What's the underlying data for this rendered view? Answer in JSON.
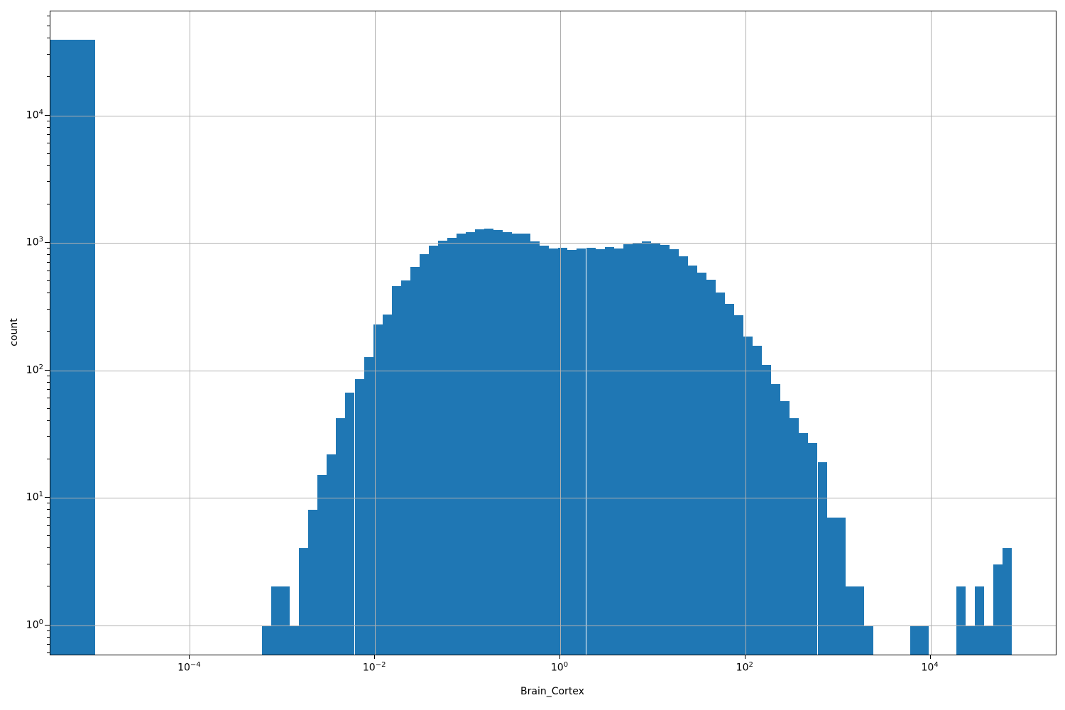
{
  "figure": {
    "xlabel": "Brain_Cortex",
    "ylabel": "count",
    "background": "#ffffff",
    "spine_color": "#000000"
  },
  "chart_data": {
    "type": "bar",
    "subtype": "histogram",
    "title": "",
    "xlabel": "Brain_Cortex",
    "ylabel": "count",
    "x_scale": "log",
    "y_scale": "log",
    "bar_color": "#1f77b4",
    "grid_color": "#b0b0b0",
    "grid": "major-both-axes-drawn-above-bars",
    "legend": "none",
    "axes": {
      "x_log10_min": -5.5061,
      "x_log10_max": 5.3528,
      "y_log10_min": -0.2312,
      "y_log10_max": 4.8162
    },
    "x_tick_exponents": [
      -4,
      -2,
      0,
      2,
      4
    ],
    "y_tick_exponents": [
      0,
      1,
      2,
      3,
      4
    ],
    "y_minor_ticks": true,
    "x_minor_ticks": false,
    "bars_format": [
      "log10_left_edge",
      "log10_right_edge",
      "count"
    ],
    "bars": [
      [
        -5.52,
        -5.02,
        39000
      ],
      [
        -3.22,
        -3.12,
        1
      ],
      [
        -3.12,
        -3.02,
        2
      ],
      [
        -3.02,
        -2.92,
        2
      ],
      [
        -2.92,
        -2.82,
        1
      ],
      [
        -2.82,
        -2.72,
        4
      ],
      [
        -2.72,
        -2.62,
        8
      ],
      [
        -2.62,
        -2.52,
        15
      ],
      [
        -2.52,
        -2.42,
        22
      ],
      [
        -2.42,
        -2.32,
        42
      ],
      [
        -2.32,
        -2.22,
        67
      ],
      [
        -2.22,
        -2.12,
        85
      ],
      [
        -2.12,
        -2.02,
        127
      ],
      [
        -2.02,
        -1.92,
        230
      ],
      [
        -1.92,
        -1.82,
        275
      ],
      [
        -1.82,
        -1.72,
        460
      ],
      [
        -1.72,
        -1.62,
        505
      ],
      [
        -1.62,
        -1.52,
        645
      ],
      [
        -1.52,
        -1.42,
        810
      ],
      [
        -1.42,
        -1.32,
        950
      ],
      [
        -1.32,
        -1.22,
        1045
      ],
      [
        -1.22,
        -1.12,
        1095
      ],
      [
        -1.12,
        -1.02,
        1180
      ],
      [
        -1.02,
        -0.92,
        1220
      ],
      [
        -0.92,
        -0.82,
        1270
      ],
      [
        -0.82,
        -0.72,
        1285
      ],
      [
        -0.72,
        -0.62,
        1255
      ],
      [
        -0.62,
        -0.52,
        1220
      ],
      [
        -0.52,
        -0.42,
        1175
      ],
      [
        -0.42,
        -0.32,
        1185
      ],
      [
        -0.32,
        -0.22,
        1030
      ],
      [
        -0.22,
        -0.12,
        950
      ],
      [
        -0.12,
        -0.02,
        900
      ],
      [
        -0.02,
        0.08,
        920
      ],
      [
        0.08,
        0.18,
        885
      ],
      [
        0.18,
        0.28,
        905
      ],
      [
        0.28,
        0.38,
        920
      ],
      [
        0.38,
        0.48,
        890
      ],
      [
        0.48,
        0.58,
        930
      ],
      [
        0.58,
        0.68,
        905
      ],
      [
        0.68,
        0.78,
        975
      ],
      [
        0.78,
        0.88,
        1005
      ],
      [
        0.88,
        0.98,
        1030
      ],
      [
        0.98,
        1.08,
        1000
      ],
      [
        1.08,
        1.18,
        960
      ],
      [
        1.18,
        1.28,
        890
      ],
      [
        1.28,
        1.38,
        780
      ],
      [
        1.38,
        1.48,
        665
      ],
      [
        1.48,
        1.58,
        585
      ],
      [
        1.58,
        1.68,
        510
      ],
      [
        1.68,
        1.78,
        410
      ],
      [
        1.78,
        1.88,
        330
      ],
      [
        1.88,
        1.98,
        270
      ],
      [
        1.98,
        2.08,
        185
      ],
      [
        2.08,
        2.18,
        155
      ],
      [
        2.18,
        2.28,
        110
      ],
      [
        2.28,
        2.38,
        78
      ],
      [
        2.38,
        2.48,
        57
      ],
      [
        2.48,
        2.58,
        42
      ],
      [
        2.58,
        2.68,
        32
      ],
      [
        2.68,
        2.78,
        27
      ],
      [
        2.78,
        2.88,
        19
      ],
      [
        2.88,
        2.98,
        7
      ],
      [
        2.98,
        3.08,
        7
      ],
      [
        3.08,
        3.18,
        2
      ],
      [
        3.18,
        3.28,
        2
      ],
      [
        3.28,
        3.38,
        1
      ],
      [
        3.78,
        3.88,
        1
      ],
      [
        3.88,
        3.98,
        1
      ],
      [
        4.28,
        4.38,
        2
      ],
      [
        4.38,
        4.48,
        1
      ],
      [
        4.48,
        4.58,
        2
      ],
      [
        4.58,
        4.68,
        1
      ],
      [
        4.68,
        4.78,
        3
      ],
      [
        4.78,
        4.88,
        4
      ]
    ]
  }
}
